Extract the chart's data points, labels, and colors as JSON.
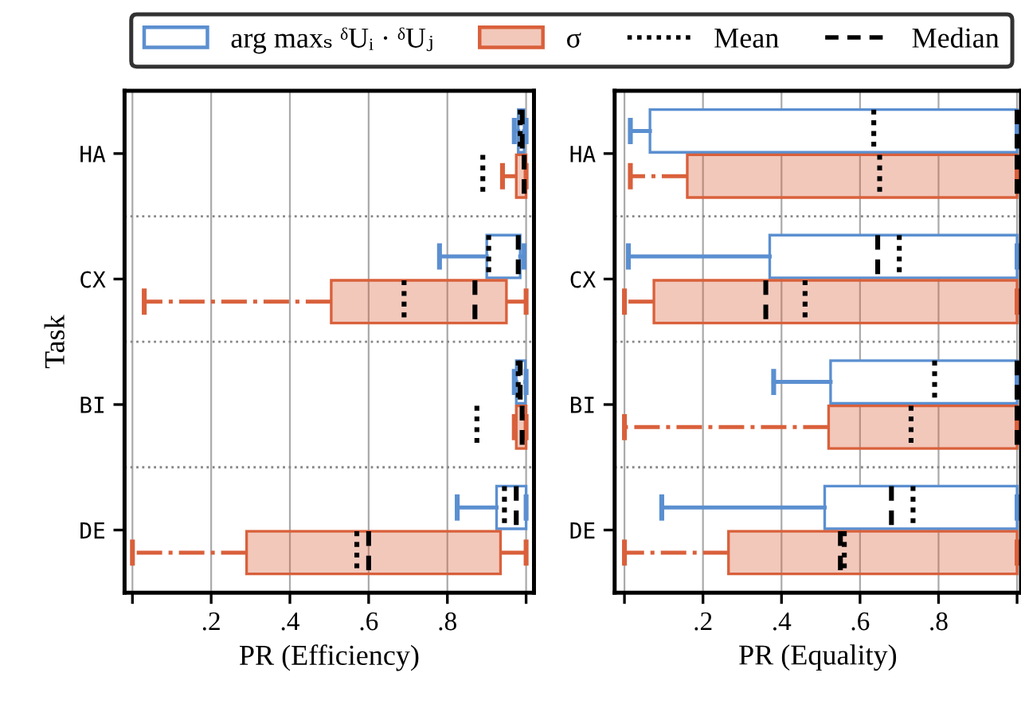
{
  "chart_data": [
    {
      "type": "box",
      "orientation": "horizontal",
      "xlabel": "PR (Efficiency)",
      "ylabel": "Task",
      "categories": [
        "HA",
        "CX",
        "BI",
        "DE"
      ],
      "xlim": [
        -0.02,
        1.02
      ],
      "xticks": [
        {
          "value": 0,
          "label": null
        },
        {
          "value": 0.2,
          "label": ".2"
        },
        {
          "value": 0.4,
          "label": ".4"
        },
        {
          "value": 0.6,
          "label": ".6"
        },
        {
          "value": 0.8,
          "label": ".8"
        },
        {
          "value": 1,
          "label": null
        }
      ],
      "grid": "x",
      "legend": "top",
      "annotations": [
        "Mean",
        "Median"
      ],
      "series": [
        {
          "name": "arg maxₛ ᵟUᵢ · ᵟUⱼ",
          "color": "#5b8fd0",
          "line_style": "solid",
          "boxes": [
            {
              "low": 0.97,
              "q1": 0.98,
              "median": 0.99,
              "q3": 0.995,
              "high": 1.0,
              "mean": 0.985
            },
            {
              "low": 0.78,
              "q1": 0.9,
              "median": 0.98,
              "q3": 0.985,
              "high": 0.995,
              "mean": 0.905
            },
            {
              "low": 0.97,
              "q1": 0.975,
              "median": 0.985,
              "q3": 0.998,
              "high": 1.0,
              "mean": 0.98
            },
            {
              "low": 0.825,
              "q1": 0.925,
              "median": 0.975,
              "q3": 1.0,
              "high": 1.0,
              "mean": 0.945
            }
          ]
        },
        {
          "name": "σ",
          "color": "#d9603b",
          "line_style": "dashdot",
          "boxes": [
            {
              "low": 0.94,
              "q1": 0.975,
              "median": 0.995,
              "q3": 1.0,
              "high": 1.0,
              "mean": 0.89
            },
            {
              "low": 0.03,
              "q1": 0.505,
              "median": 0.87,
              "q3": 0.95,
              "high": 1.0,
              "mean": 0.69
            },
            {
              "low": 0.97,
              "q1": 0.975,
              "median": 0.99,
              "q3": 1.0,
              "high": 1.0,
              "mean": 0.875
            },
            {
              "low": 0.0,
              "q1": 0.29,
              "median": 0.6,
              "q3": 0.935,
              "high": 1.0,
              "mean": 0.57
            }
          ]
        }
      ]
    },
    {
      "type": "box",
      "orientation": "horizontal",
      "xlabel": "PR (Equality)",
      "categories": [
        "HA",
        "CX",
        "BI",
        "DE"
      ],
      "xlim": [
        -0.025,
        1.01
      ],
      "xticks": [
        {
          "value": 0,
          "label": null
        },
        {
          "value": 0.2,
          "label": ".2"
        },
        {
          "value": 0.4,
          "label": ".4"
        },
        {
          "value": 0.6,
          "label": ".6"
        },
        {
          "value": 0.8,
          "label": ".8"
        },
        {
          "value": 1,
          "label": null
        }
      ],
      "grid": "x",
      "series": [
        {
          "color": "#5b8fd0",
          "line_style": "solid",
          "boxes": [
            {
              "low": 0.015,
              "q1": 0.065,
              "median": 1.0,
              "q3": 1.0,
              "high": 1.0,
              "mean": 0.635
            },
            {
              "low": 0.01,
              "q1": 0.37,
              "median": 0.645,
              "q3": 1.0,
              "high": 1.0,
              "mean": 0.7
            },
            {
              "low": 0.38,
              "q1": 0.525,
              "median": 1.0,
              "q3": 1.0,
              "high": 1.0,
              "mean": 0.79
            },
            {
              "low": 0.095,
              "q1": 0.51,
              "median": 0.68,
              "q3": 1.0,
              "high": 1.0,
              "mean": 0.735
            }
          ]
        },
        {
          "color": "#d9603b",
          "line_style": "dashdot",
          "boxes": [
            {
              "low": 0.015,
              "q1": 0.16,
              "median": 1.0,
              "q3": 1.0,
              "high": 1.0,
              "mean": 0.65
            },
            {
              "low": 0.0,
              "q1": 0.075,
              "median": 0.36,
              "q3": 1.0,
              "high": 1.0,
              "mean": 0.46
            },
            {
              "low": 0.0,
              "q1": 0.52,
              "median": 1.0,
              "q3": 1.0,
              "high": 1.0,
              "mean": 0.73
            },
            {
              "low": 0.0,
              "q1": 0.265,
              "median": 0.55,
              "q3": 1.0,
              "high": 1.0,
              "mean": 0.56
            }
          ]
        }
      ]
    }
  ]
}
